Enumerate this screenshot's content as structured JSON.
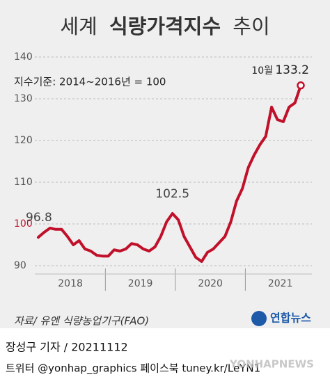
{
  "chart_data": {
    "type": "line",
    "title_parts": [
      "세계",
      "식량가격지수",
      "추이"
    ],
    "subtitle": "지수기준: 2014~2016년 = 100",
    "categories": [
      null,
      null,
      null,
      null,
      null,
      null,
      "2018",
      null,
      null,
      null,
      null,
      null,
      null,
      null,
      null,
      null,
      null,
      null,
      "2019",
      null,
      null,
      null,
      null,
      null,
      null,
      null,
      null,
      null,
      null,
      null,
      "2020",
      null,
      null,
      null,
      null,
      null,
      null,
      null,
      null,
      null,
      null,
      null,
      "2021",
      null,
      null,
      null
    ],
    "values": [
      96.8,
      98,
      99,
      98.7,
      98.7,
      97,
      95,
      96,
      94,
      93.5,
      92.5,
      92.3,
      92.3,
      93.8,
      93.5,
      94,
      95.3,
      95,
      94,
      93.5,
      94.5,
      97,
      100.5,
      102.5,
      101,
      97,
      94.5,
      92,
      91,
      93.2,
      94,
      95.5,
      97,
      100.5,
      105.5,
      108.5,
      113.5,
      116.5,
      119,
      121,
      128,
      125,
      124.5,
      128,
      129,
      133.2
    ],
    "annotations": [
      "10월"
    ],
    "color": "#c0102a",
    "highlight_tick_color": "#c0102a",
    "ylim": [
      88,
      142
    ],
    "yticks": [
      90,
      100,
      110,
      120,
      130,
      140
    ],
    "grid": true
  },
  "footer": {
    "source": "자료/ 유엔 식량농업기구(FAO)",
    "logo": "연합뉴스",
    "byline": "장성구 기자 / 20211112",
    "social": "트위터 @yonhap_graphics  페이스북 tuney.kr/LeYN1",
    "watermark": "YONHAPNEWS"
  }
}
